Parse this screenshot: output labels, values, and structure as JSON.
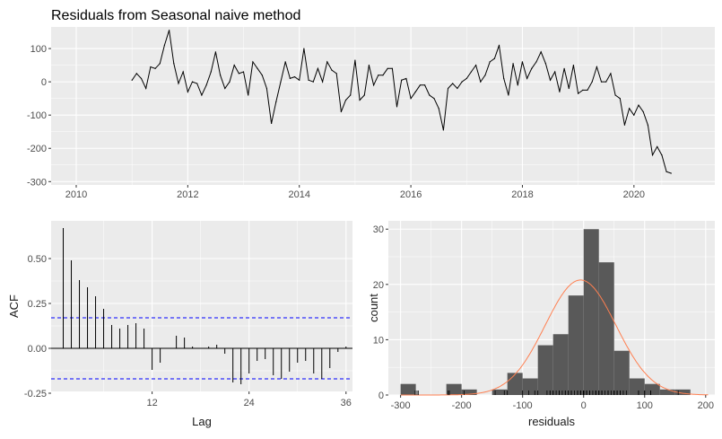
{
  "title": "Residuals from Seasonal naive method",
  "colors": {
    "panel_bg": "#ebebeb",
    "grid": "#ffffff",
    "line": "#000000",
    "bar_fill": "#595959",
    "normal_curve": "#ff7f50",
    "conf_band": "#0000ff"
  },
  "chart_data": [
    {
      "type": "line",
      "title": "Residuals from Seasonal naive method",
      "xlabel": "",
      "ylabel": "",
      "xlim": [
        2009.55,
        2021.45
      ],
      "ylim": [
        -310,
        165
      ],
      "x_ticks": [
        2010,
        2012,
        2014,
        2016,
        2018,
        2020
      ],
      "x_tick_labels": [
        "2010",
        "2012",
        "2014",
        "2016",
        "2018",
        "2020"
      ],
      "y_ticks": [
        100,
        0,
        -100,
        -200,
        -300
      ],
      "y_tick_labels": [
        "100",
        "0",
        "-100",
        "-200",
        "-300"
      ],
      "grid": true,
      "x_start": 2011.0,
      "x_step": 0.08333,
      "values": [
        5,
        25,
        10,
        -20,
        45,
        40,
        55,
        110,
        155,
        55,
        -5,
        30,
        -30,
        0,
        -5,
        -40,
        -10,
        30,
        90,
        20,
        -20,
        0,
        50,
        25,
        30,
        -40,
        60,
        40,
        20,
        -20,
        -125,
        -60,
        0,
        60,
        10,
        15,
        5,
        100,
        5,
        0,
        40,
        0,
        60,
        35,
        25,
        -90,
        -55,
        -40,
        65,
        -55,
        -40,
        50,
        -10,
        20,
        20,
        40,
        40,
        -75,
        5,
        10,
        -50,
        -30,
        -10,
        -10,
        -40,
        -50,
        -80,
        -145,
        -20,
        -5,
        -20,
        0,
        10,
        30,
        50,
        0,
        20,
        60,
        70,
        110,
        10,
        -40,
        55,
        -10,
        60,
        10,
        40,
        60,
        90,
        55,
        5,
        30,
        -30,
        40,
        -20,
        50,
        -35,
        -25,
        -25,
        0,
        45,
        0,
        0,
        25,
        -40,
        -50,
        -130,
        -80,
        -100,
        -70,
        -90,
        -130,
        -220,
        -195,
        -220,
        -270,
        -275
      ]
    },
    {
      "type": "bar",
      "subtype": "acf",
      "xlabel": "Lag",
      "ylabel": "ACF",
      "xlim": [
        -0.5,
        36.8
      ],
      "ylim": [
        -0.24,
        0.71
      ],
      "x_ticks": [
        12,
        24,
        36
      ],
      "x_tick_labels": [
        "12",
        "24",
        "36"
      ],
      "y_ticks": [
        0.5,
        0.25,
        0.0,
        -0.25
      ],
      "y_tick_labels": [
        "0.50",
        "0.25",
        "0.00",
        "-0.25"
      ],
      "grid": true,
      "lags": [
        1,
        2,
        3,
        4,
        5,
        6,
        7,
        8,
        9,
        10,
        11,
        12,
        13,
        14,
        15,
        16,
        17,
        18,
        19,
        20,
        21,
        22,
        23,
        24,
        25,
        26,
        27,
        28,
        29,
        30,
        31,
        32,
        33,
        34,
        35,
        36
      ],
      "values": [
        0.67,
        0.49,
        0.38,
        0.34,
        0.29,
        0.22,
        0.13,
        0.11,
        0.13,
        0.14,
        0.11,
        -0.12,
        -0.08,
        0.0,
        0.07,
        0.06,
        0.01,
        0.0,
        0.01,
        0.02,
        -0.03,
        -0.19,
        -0.2,
        -0.14,
        -0.07,
        -0.06,
        -0.15,
        -0.17,
        -0.13,
        -0.08,
        -0.07,
        -0.14,
        -0.17,
        -0.11,
        -0.02,
        0.01
      ],
      "confidence_bounds": [
        0.17,
        -0.17
      ]
    },
    {
      "type": "bar",
      "subtype": "histogram",
      "xlabel": "residuals",
      "ylabel": "count",
      "xlim": [
        -320,
        215
      ],
      "ylim": [
        0,
        31.5
      ],
      "x_ticks": [
        -300,
        -200,
        -100,
        0,
        100,
        200
      ],
      "x_tick_labels": [
        "-300",
        "-200",
        "-100",
        "0",
        "100",
        "200"
      ],
      "y_ticks": [
        0,
        10,
        20,
        30
      ],
      "y_tick_labels": [
        "0",
        "10",
        "20",
        "30"
      ],
      "grid": true,
      "bin_width": 25,
      "bins_left": [
        -300,
        -275,
        -250,
        -225,
        -200,
        -175,
        -150,
        -125,
        -100,
        -75,
        -50,
        -25,
        0,
        25,
        50,
        75,
        100,
        125,
        150
      ],
      "counts": [
        2,
        0,
        0,
        2,
        1,
        0,
        1,
        4,
        3,
        9,
        11,
        18,
        30,
        24,
        8,
        3,
        2,
        1,
        1
      ],
      "normal_curve": {
        "mean": -5,
        "sd": 58,
        "peak": 20.8
      },
      "rug": [
        -276,
        -271,
        -273,
        -220,
        -196,
        -222,
        -145,
        -130,
        -125,
        -100,
        -90,
        -80,
        -75,
        -60,
        -55,
        -55,
        -50,
        -50,
        -45,
        -40,
        -40,
        -40,
        -40,
        -35,
        -30,
        -30,
        -25,
        -25,
        -20,
        -20,
        -20,
        -20,
        -15,
        -10,
        -10,
        -10,
        -10,
        -10,
        -5,
        -5,
        -5,
        0,
        0,
        0,
        0,
        0,
        0,
        0,
        0,
        5,
        5,
        5,
        5,
        10,
        10,
        10,
        10,
        15,
        20,
        20,
        20,
        20,
        25,
        25,
        25,
        30,
        30,
        30,
        35,
        40,
        40,
        40,
        40,
        40,
        45,
        50,
        50,
        50,
        55,
        55,
        55,
        60,
        60,
        60,
        60,
        65,
        70,
        90,
        90,
        100,
        100,
        110,
        110,
        155
      ]
    }
  ]
}
